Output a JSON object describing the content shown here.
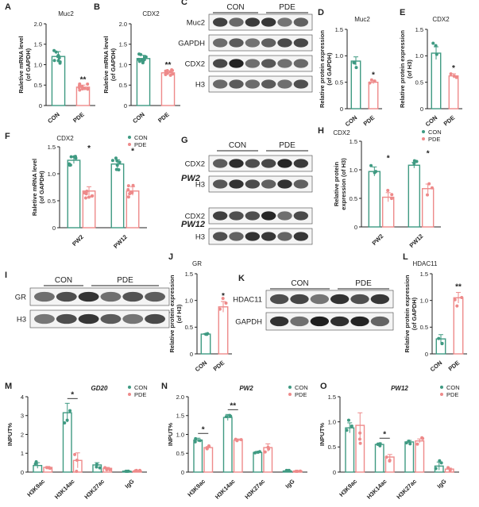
{
  "colors": {
    "con": "#3f9a82",
    "pde": "#ee8a8a",
    "axis": "#222222"
  },
  "panels": [
    {
      "letter": "A",
      "type": "bar-scatter",
      "subtitle": "Muc2",
      "ylabel": "Raletive mRNA level\n(of GAPDH)",
      "ylim": [
        0,
        2.0
      ],
      "ticks": [
        0,
        0.5,
        1.0,
        1.5,
        2.0
      ],
      "groups": [
        {
          "categories": [
            "CON",
            "PDE"
          ],
          "values": [
            1.2,
            0.45
          ],
          "err": [
            0.12,
            0.05
          ],
          "sig": [
            "",
            "**"
          ]
        }
      ]
    },
    {
      "letter": "B",
      "type": "bar-scatter",
      "subtitle": "CDX2",
      "ylabel": "Raletive mRNA level\n(of GAPDH)",
      "ylim": [
        0,
        2.0
      ],
      "ticks": [
        0,
        0.5,
        1.0,
        1.5,
        2.0
      ],
      "groups": [
        {
          "categories": [
            "CON",
            "PDE"
          ],
          "values": [
            1.15,
            0.8
          ],
          "err": [
            0.08,
            0.05
          ],
          "sig": [
            "",
            "**"
          ]
        }
      ]
    },
    {
      "letter": "D",
      "type": "bar-scatter",
      "subtitle": "Muc2",
      "ylabel": "Relative protein expression\n(of GAPDH)",
      "ylim": [
        0,
        1.5
      ],
      "ticks": [
        0,
        0.5,
        1.0,
        1.5
      ],
      "groups": [
        {
          "categories": [
            "CON",
            "PDE"
          ],
          "values": [
            0.9,
            0.5
          ],
          "err": [
            0.08,
            0.03
          ],
          "sig": [
            "",
            "*"
          ]
        }
      ]
    },
    {
      "letter": "E",
      "type": "bar-scatter",
      "subtitle": "CDX2",
      "ylabel": "Relative protein expression\n(of H3)",
      "ylim": [
        0,
        1.5
      ],
      "ticks": [
        0,
        0.5,
        1.0,
        1.5
      ],
      "groups": [
        {
          "categories": [
            "CON",
            "PDE"
          ],
          "values": [
            1.05,
            0.62
          ],
          "err": [
            0.12,
            0.04
          ],
          "sig": [
            "",
            "*"
          ]
        }
      ]
    },
    {
      "letter": "F",
      "type": "grouped",
      "subtitle": "CDX2",
      "ylabel": "Raletive mRNA level\n(of GAPDH)",
      "ylim": [
        0,
        1.5
      ],
      "ticks": [
        0,
        0.5,
        1.0,
        1.5
      ],
      "legend": [
        "CON",
        "PDE"
      ],
      "groups": [
        {
          "label": "PW2",
          "values": [
            1.25,
            0.68
          ],
          "err": [
            0.06,
            0.08
          ],
          "sig": [
            "",
            "*"
          ]
        },
        {
          "label": "PW12",
          "values": [
            1.18,
            0.68
          ],
          "err": [
            0.08,
            0.08
          ],
          "sig": [
            "",
            "*"
          ]
        }
      ]
    },
    {
      "letter": "H",
      "type": "grouped",
      "subtitle": "CDX2",
      "ylabel": "Relative protein\nexpression (of H3)",
      "ylim": [
        0,
        1.5
      ],
      "ticks": [
        0,
        0.5,
        1.0,
        1.5
      ],
      "legend": [
        "CON",
        "PDE"
      ],
      "groups": [
        {
          "label": "PW2",
          "values": [
            0.97,
            0.52
          ],
          "err": [
            0.08,
            0.08
          ],
          "sig": [
            "",
            "*"
          ]
        },
        {
          "label": "PW12",
          "values": [
            1.08,
            0.67
          ],
          "err": [
            0.05,
            0.08
          ],
          "sig": [
            "",
            "*"
          ]
        }
      ]
    },
    {
      "letter": "J",
      "type": "bar-scatter",
      "subtitle": "GR",
      "ylabel": "Relative protein expression\n(of H3)",
      "ylim": [
        0,
        1.5
      ],
      "ticks": [
        0,
        0.5,
        1.0,
        1.5
      ],
      "groups": [
        {
          "categories": [
            "CON",
            "PDE"
          ],
          "values": [
            0.37,
            0.88
          ],
          "err": [
            0.01,
            0.1
          ],
          "sig": [
            "",
            "*"
          ]
        }
      ]
    },
    {
      "letter": "L",
      "type": "bar-scatter",
      "subtitle": "HDAC11",
      "ylabel": "Relative protein expression\n(of GAPDH)",
      "ylim": [
        0,
        1.5
      ],
      "ticks": [
        0,
        0.5,
        1.0,
        1.5
      ],
      "groups": [
        {
          "categories": [
            "CON",
            "PDE"
          ],
          "values": [
            0.28,
            1.05
          ],
          "err": [
            0.08,
            0.1
          ],
          "sig": [
            "",
            "**"
          ]
        }
      ]
    },
    {
      "letter": "M",
      "type": "grouped",
      "subtitle": "GD20",
      "ylabel": "INPUT%",
      "ylim": [
        0,
        4
      ],
      "ticks": [
        0,
        1,
        2,
        3,
        4
      ],
      "legend": [
        "CON",
        "PDE"
      ],
      "groups": [
        {
          "label": "H3K9ac",
          "values": [
            0.35,
            0.25
          ],
          "err": [
            0.15,
            0.05
          ],
          "sig": [
            "",
            ""
          ]
        },
        {
          "label": "H3K14ac",
          "values": [
            3.15,
            0.62
          ],
          "err": [
            0.5,
            0.4
          ],
          "sig": [
            "",
            "*"
          ]
        },
        {
          "label": "H3K27ac",
          "values": [
            0.38,
            0.2
          ],
          "err": [
            0.12,
            0.05
          ],
          "sig": [
            "",
            ""
          ]
        },
        {
          "label": "IgG",
          "values": [
            0.05,
            0.06
          ],
          "err": [
            0.02,
            0.02
          ],
          "sig": [
            "",
            ""
          ]
        }
      ]
    },
    {
      "letter": "N",
      "type": "grouped",
      "subtitle": "PW2",
      "ylabel": "INPUT%",
      "ylim": [
        0,
        2.0
      ],
      "ticks": [
        0,
        0.5,
        1.0,
        1.5,
        2.0
      ],
      "legend": [
        "CON",
        "PDE"
      ],
      "groups": [
        {
          "label": "H3K9ac",
          "values": [
            0.85,
            0.65
          ],
          "err": [
            0.05,
            0.03
          ],
          "sig": [
            "",
            "*"
          ]
        },
        {
          "label": "H3K14ac",
          "values": [
            1.45,
            0.85
          ],
          "err": [
            0.08,
            0.03
          ],
          "sig": [
            "",
            "**"
          ]
        },
        {
          "label": "H3K27ac",
          "values": [
            0.52,
            0.65
          ],
          "err": [
            0.03,
            0.1
          ],
          "sig": [
            "",
            ""
          ]
        },
        {
          "label": "IgG",
          "values": [
            0.03,
            0.03
          ],
          "err": [
            0.01,
            0.01
          ],
          "sig": [
            "",
            ""
          ]
        }
      ]
    },
    {
      "letter": "O",
      "type": "grouped",
      "subtitle": "PW12",
      "ylabel": "INPUT%",
      "ylim": [
        0,
        1.5
      ],
      "ticks": [
        0,
        0.5,
        1.0,
        1.5
      ],
      "legend": [
        "CON",
        "PDE"
      ],
      "groups": [
        {
          "label": "H3K9ac",
          "values": [
            0.88,
            0.93
          ],
          "err": [
            0.1,
            0.25
          ],
          "sig": [
            "",
            ""
          ]
        },
        {
          "label": "H3K14ac",
          "values": [
            0.55,
            0.3
          ],
          "err": [
            0.03,
            0.05
          ],
          "sig": [
            "",
            "*"
          ]
        },
        {
          "label": "H3K27ac",
          "values": [
            0.6,
            0.62
          ],
          "err": [
            0.03,
            0.04
          ],
          "sig": [
            "",
            ""
          ]
        },
        {
          "label": "IgG",
          "values": [
            0.12,
            0.06
          ],
          "err": [
            0.08,
            0.02
          ],
          "sig": [
            "",
            ""
          ]
        }
      ]
    }
  ],
  "blots": [
    {
      "letter": "C",
      "header": [
        "CON",
        "PDE"
      ],
      "rows": [
        "Muc2",
        "GAPDH",
        "CDX2",
        "H3"
      ]
    },
    {
      "letter": "G",
      "header": [
        "CON",
        "PDE"
      ],
      "rows": [
        "CDX2",
        "H3",
        "CDX2",
        "H3"
      ],
      "section_labels": [
        "PW2",
        "PW12"
      ]
    },
    {
      "letter": "I",
      "header": [
        "CON",
        "PDE"
      ],
      "rows": [
        "GR",
        "H3"
      ]
    },
    {
      "letter": "K",
      "header": [
        "CON",
        "PDE"
      ],
      "rows": [
        "HDAC11",
        "GAPDH"
      ]
    }
  ],
  "chart_data": [
    {
      "panel": "A",
      "type": "bar",
      "title": "Muc2",
      "ylabel": "Raletive mRNA level (of GAPDH)",
      "categories": [
        "CON",
        "PDE"
      ],
      "values": [
        1.2,
        0.45
      ],
      "ylim": [
        0,
        2.0
      ]
    },
    {
      "panel": "B",
      "type": "bar",
      "title": "CDX2",
      "ylabel": "Raletive mRNA level (of GAPDH)",
      "categories": [
        "CON",
        "PDE"
      ],
      "values": [
        1.15,
        0.8
      ],
      "ylim": [
        0,
        2.0
      ]
    },
    {
      "panel": "D",
      "type": "bar",
      "title": "Muc2",
      "ylabel": "Relative protein expression (of GAPDH)",
      "categories": [
        "CON",
        "PDE"
      ],
      "values": [
        0.9,
        0.5
      ],
      "ylim": [
        0,
        1.5
      ]
    },
    {
      "panel": "E",
      "type": "bar",
      "title": "CDX2",
      "ylabel": "Relative protein expression (of H3)",
      "categories": [
        "CON",
        "PDE"
      ],
      "values": [
        1.05,
        0.62
      ],
      "ylim": [
        0,
        1.5
      ]
    },
    {
      "panel": "F",
      "type": "bar",
      "title": "CDX2",
      "categories": [
        "PW2",
        "PW12"
      ],
      "series": [
        {
          "name": "CON",
          "values": [
            1.25,
            1.18
          ]
        },
        {
          "name": "PDE",
          "values": [
            0.68,
            0.68
          ]
        }
      ],
      "ylim": [
        0,
        1.5
      ]
    },
    {
      "panel": "H",
      "type": "bar",
      "title": "CDX2",
      "categories": [
        "PW2",
        "PW12"
      ],
      "series": [
        {
          "name": "CON",
          "values": [
            0.97,
            1.08
          ]
        },
        {
          "name": "PDE",
          "values": [
            0.52,
            0.67
          ]
        }
      ],
      "ylim": [
        0,
        1.5
      ]
    },
    {
      "panel": "J",
      "type": "bar",
      "title": "GR",
      "categories": [
        "CON",
        "PDE"
      ],
      "values": [
        0.37,
        0.88
      ],
      "ylim": [
        0,
        1.5
      ]
    },
    {
      "panel": "L",
      "type": "bar",
      "title": "HDAC11",
      "categories": [
        "CON",
        "PDE"
      ],
      "values": [
        0.28,
        1.05
      ],
      "ylim": [
        0,
        1.5
      ]
    },
    {
      "panel": "M",
      "type": "bar",
      "title": "GD20",
      "categories": [
        "H3K9ac",
        "H3K14ac",
        "H3K27ac",
        "IgG"
      ],
      "series": [
        {
          "name": "CON",
          "values": [
            0.35,
            3.15,
            0.38,
            0.05
          ]
        },
        {
          "name": "PDE",
          "values": [
            0.25,
            0.62,
            0.2,
            0.06
          ]
        }
      ],
      "ylim": [
        0,
        4
      ]
    },
    {
      "panel": "N",
      "type": "bar",
      "title": "PW2",
      "categories": [
        "H3K9ac",
        "H3K14ac",
        "H3K27ac",
        "IgG"
      ],
      "series": [
        {
          "name": "CON",
          "values": [
            0.85,
            1.45,
            0.52,
            0.03
          ]
        },
        {
          "name": "PDE",
          "values": [
            0.65,
            0.85,
            0.65,
            0.03
          ]
        }
      ],
      "ylim": [
        0,
        2.0
      ]
    },
    {
      "panel": "O",
      "type": "bar",
      "title": "PW12",
      "categories": [
        "H3K9ac",
        "H3K14ac",
        "H3K27ac",
        "IgG"
      ],
      "series": [
        {
          "name": "CON",
          "values": [
            0.88,
            0.55,
            0.6,
            0.12
          ]
        },
        {
          "name": "PDE",
          "values": [
            0.93,
            0.3,
            0.62,
            0.06
          ]
        }
      ],
      "ylim": [
        0,
        1.5
      ]
    }
  ]
}
